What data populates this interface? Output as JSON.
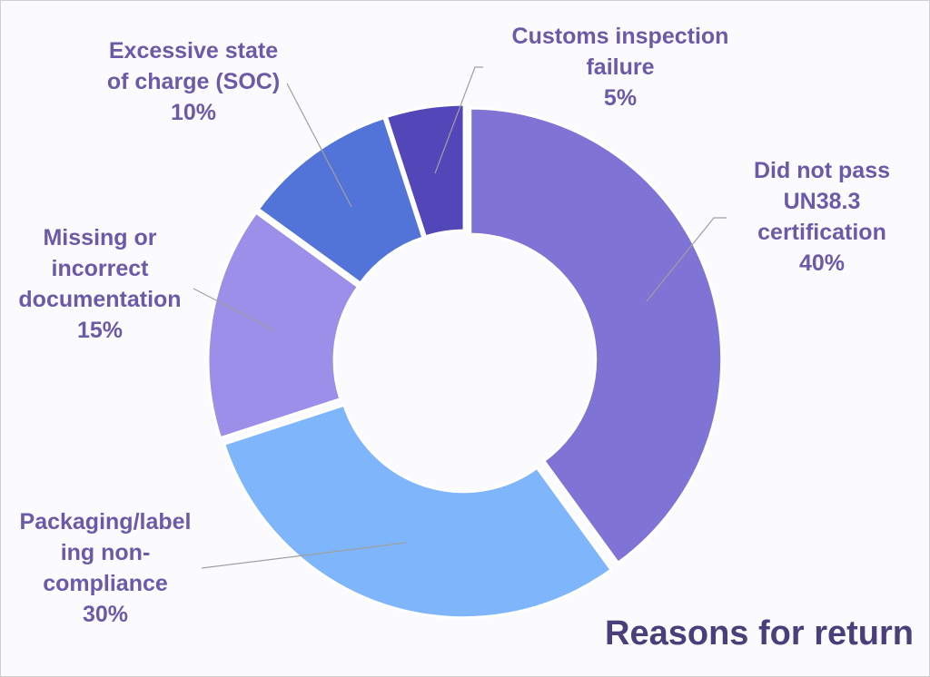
{
  "chart_data": {
    "type": "pie",
    "subtype": "doughnut",
    "title": "Reasons for return",
    "legend": "none",
    "slices": [
      {
        "label_lines": [
          "Did not pass",
          "UN38.3",
          "certification"
        ],
        "percent_label": "40%",
        "value": 40,
        "color": "#7f73d6"
      },
      {
        "label_lines": [
          "Packaging/label",
          "ing non-",
          "compliance"
        ],
        "percent_label": "30%",
        "value": 30,
        "color": "#7fb5fb"
      },
      {
        "label_lines": [
          "Missing or",
          "incorrect",
          "documentation"
        ],
        "percent_label": "15%",
        "value": 15,
        "color": "#9b8fe9"
      },
      {
        "label_lines": [
          "Excessive state",
          "of charge (SOC)"
        ],
        "percent_label": "10%",
        "value": 10,
        "color": "#5274d9"
      },
      {
        "label_lines": [
          "Customs inspection",
          "failure"
        ],
        "percent_label": "5%",
        "value": 5,
        "color": "#5346b8"
      }
    ]
  }
}
